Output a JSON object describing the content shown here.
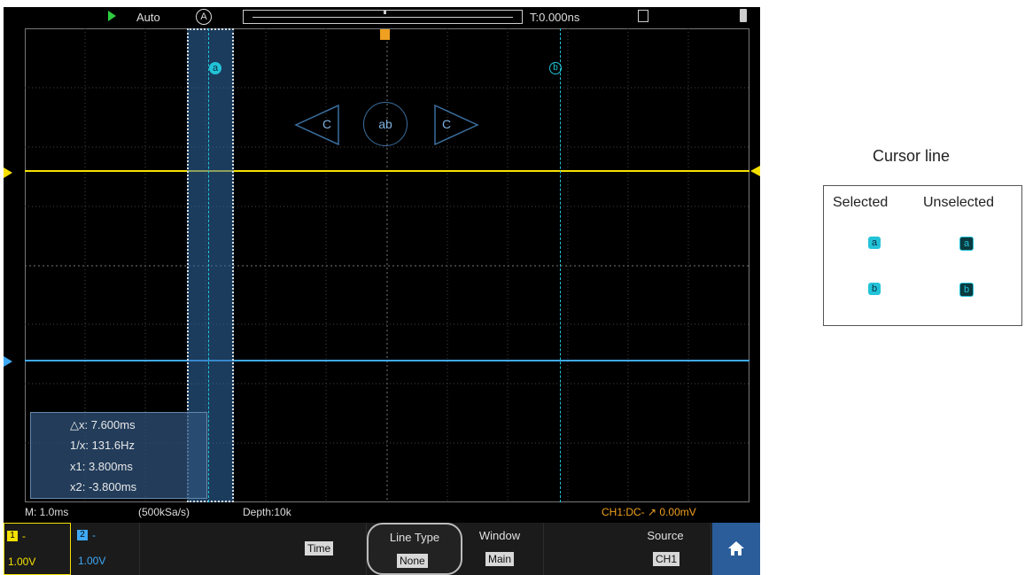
{
  "topbar": {
    "run_state": "Auto",
    "trigger_mode": "A",
    "trigger_time": "T:0.000ns"
  },
  "cursors": {
    "marker_a": "a",
    "marker_b": "b",
    "center_label": "ab",
    "left_arrow_label": "C",
    "right_arrow_label": "C"
  },
  "readout": {
    "dx": "△x: 7.600ms",
    "inv_dx": "1/x: 131.6Hz",
    "x1": "x1: 3.800ms",
    "x2": "x2: -3.800ms"
  },
  "status": {
    "timebase": "M: 1.0ms",
    "sample_rate": "(500kSa/s)",
    "depth": "Depth:10k",
    "trigger_info": "CH1:DC- ↗ 0.00mV"
  },
  "channels": [
    {
      "num": "1",
      "coupling": "-",
      "scale": "1.00V",
      "color": "#f5e100"
    },
    {
      "num": "2",
      "coupling": "-",
      "scale": "1.00V",
      "color": "#3fa9f5"
    }
  ],
  "menu": {
    "time_label": "Time",
    "line_type_label": "Line Type",
    "line_type_value": "None",
    "window_label": "Window",
    "window_value": "Main",
    "source_label": "Source",
    "source_value": "CH1"
  },
  "legend": {
    "title": "Cursor line",
    "col_selected": "Selected",
    "col_unselected": "Unselected"
  },
  "colors": {
    "ch1": "#f5e100",
    "ch2": "#3fa9f5",
    "cursor": "#22c3d8",
    "trigger": "#f0a020"
  }
}
